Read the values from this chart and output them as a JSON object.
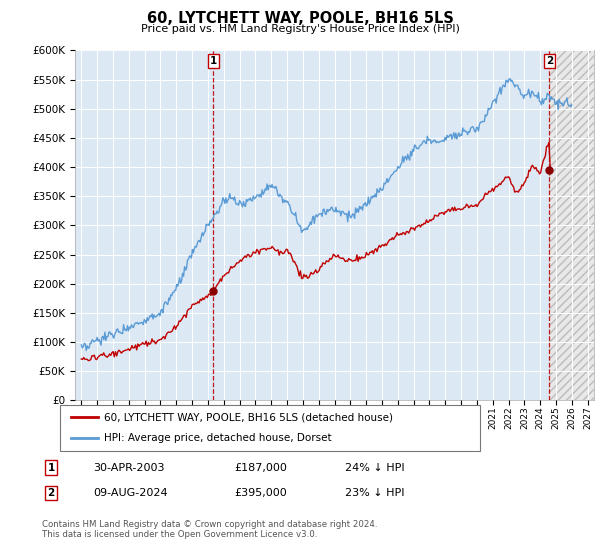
{
  "title": "60, LYTCHETT WAY, POOLE, BH16 5LS",
  "subtitle": "Price paid vs. HM Land Registry's House Price Index (HPI)",
  "hpi_color": "#5b9bd5",
  "price_color": "#c00000",
  "plot_bg_color": "#dce9f5",
  "hatch_bg_color": "#e0e0e0",
  "ylim": [
    0,
    600000
  ],
  "yticks": [
    0,
    50000,
    100000,
    150000,
    200000,
    250000,
    300000,
    350000,
    400000,
    450000,
    500000,
    550000,
    600000
  ],
  "xlim_min": 1994.6,
  "xlim_max": 2027.4,
  "sale1_x": 2003.33,
  "sale1_y": 187000,
  "sale2_x": 2024.58,
  "sale2_y": 395000,
  "annotation1": {
    "label": "1",
    "date": "30-APR-2003",
    "price": "£187,000",
    "pct": "24% ↓ HPI"
  },
  "annotation2": {
    "label": "2",
    "date": "09-AUG-2024",
    "price": "£395,000",
    "pct": "23% ↓ HPI"
  },
  "legend_label1": "60, LYTCHETT WAY, POOLE, BH16 5LS (detached house)",
  "legend_label2": "HPI: Average price, detached house, Dorset",
  "footer": "Contains HM Land Registry data © Crown copyright and database right 2024.\nThis data is licensed under the Open Government Licence v3.0."
}
